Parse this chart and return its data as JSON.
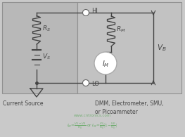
{
  "bg_color": "#c9c9c9",
  "left_panel_color": "#b8b8b8",
  "right_panel_color": "#c2c2c2",
  "line_color": "#444444",
  "text_color": "#444444",
  "green_color": "#6aaa6a",
  "white": "#ffffff",
  "labels": {
    "RS": "$R_S$",
    "VS": "$V_S$",
    "RM": "$R_M$",
    "IM": "$I_M$",
    "VB": "$V_B$",
    "HI": "HI",
    "LO": "LO"
  },
  "title_bottom": "DMM, Electrometer, SMU,\nor Picoammeter",
  "current_source_label": "Current Source",
  "watermark": "www.cntronics.com",
  "figsize": [
    2.63,
    1.95
  ],
  "dpi": 100
}
